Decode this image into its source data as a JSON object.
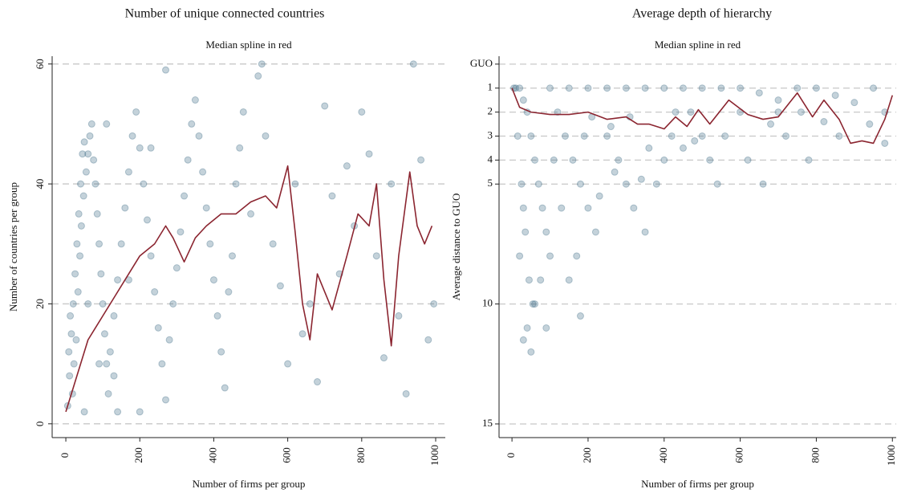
{
  "chart_data": [
    {
      "type": "scatter",
      "title": "Number of unique connected countries",
      "subtitle": "Median spline in red",
      "xlabel": "Number of firms per group",
      "ylabel": "Number of countries per group",
      "xlim": [
        -37,
        1026
      ],
      "ylim": [
        -2.3,
        61.3
      ],
      "xticks": [
        0,
        200,
        400,
        600,
        800,
        1000
      ],
      "yticks": [
        0,
        20,
        40,
        60
      ],
      "y_inverted": false,
      "ytick_rotated": true,
      "grid": true,
      "series": [
        {
          "mode": "markers",
          "color": "#3d6a85",
          "x": [
            5,
            10,
            15,
            20,
            25,
            30,
            35,
            40,
            45,
            50,
            8,
            12,
            18,
            22,
            28,
            33,
            38,
            42,
            48,
            55,
            60,
            65,
            70,
            75,
            80,
            85,
            90,
            95,
            100,
            105,
            110,
            115,
            120,
            130,
            140,
            150,
            160,
            170,
            180,
            190,
            200,
            210,
            220,
            230,
            240,
            250,
            260,
            270,
            280,
            290,
            300,
            310,
            320,
            330,
            340,
            350,
            360,
            370,
            380,
            390,
            400,
            410,
            420,
            430,
            440,
            450,
            460,
            470,
            480,
            500,
            520,
            530,
            540,
            560,
            580,
            600,
            620,
            640,
            660,
            680,
            700,
            720,
            740,
            760,
            780,
            800,
            820,
            840,
            860,
            880,
            900,
            920,
            940,
            960,
            980,
            995,
            60,
            90,
            140,
            200,
            50,
            130,
            170,
            230,
            270,
            110
          ],
          "y": [
            3,
            8,
            15,
            20,
            25,
            30,
            35,
            40,
            45,
            47,
            12,
            18,
            5,
            10,
            14,
            22,
            28,
            33,
            38,
            42,
            45,
            48,
            50,
            44,
            40,
            35,
            30,
            25,
            20,
            15,
            10,
            5,
            12,
            18,
            24,
            30,
            36,
            42,
            48,
            52,
            46,
            40,
            34,
            28,
            22,
            16,
            10,
            4,
            14,
            20,
            26,
            32,
            38,
            44,
            50,
            54,
            48,
            42,
            36,
            30,
            24,
            18,
            12,
            6,
            22,
            28,
            40,
            46,
            52,
            35,
            58,
            60,
            48,
            30,
            23,
            10,
            40,
            15,
            20,
            7,
            53,
            38,
            25,
            43,
            33,
            52,
            45,
            28,
            11,
            40,
            18,
            5,
            60,
            44,
            14,
            20,
            20,
            10,
            2,
            2,
            2,
            8,
            24,
            46,
            59,
            50
          ]
        },
        {
          "mode": "line",
          "color": "#8b2530",
          "x": [
            0,
            20,
            40,
            60,
            80,
            100,
            130,
            160,
            200,
            240,
            270,
            290,
            320,
            350,
            380,
            420,
            460,
            500,
            540,
            570,
            600,
            620,
            640,
            660,
            680,
            700,
            720,
            760,
            790,
            820,
            840,
            860,
            880,
            900,
            930,
            950,
            970,
            990
          ],
          "y": [
            2,
            6,
            10,
            14,
            16,
            18,
            21,
            24,
            28,
            30,
            33,
            31,
            27,
            31,
            33,
            35,
            35,
            37,
            38,
            36,
            43,
            32,
            20,
            14,
            25,
            22,
            19,
            28,
            35,
            33,
            40,
            24,
            13,
            28,
            42,
            33,
            30,
            33
          ]
        }
      ]
    },
    {
      "type": "scatter",
      "title": "Average depth of hierarchy",
      "subtitle": "Median spline in red",
      "xlabel": "Number of firms per group",
      "ylabel": "Average distance to GUO",
      "xlim": [
        -34,
        1010
      ],
      "ylim": [
        -0.33,
        15.57
      ],
      "xticks": [
        0,
        200,
        400,
        600,
        800,
        1000
      ],
      "yticks": [
        {
          "value": 0,
          "label": "GUO"
        },
        1,
        2,
        3,
        4,
        5,
        10,
        15
      ],
      "y_inverted": true,
      "ytick_rotated": false,
      "grid": true,
      "series": [
        {
          "mode": "markers",
          "color": "#3d6a85",
          "x": [
            5,
            10,
            20,
            30,
            40,
            50,
            60,
            70,
            80,
            90,
            100,
            15,
            25,
            35,
            45,
            55,
            20,
            30,
            40,
            50,
            100,
            150,
            200,
            250,
            300,
            350,
            400,
            450,
            500,
            550,
            600,
            650,
            700,
            750,
            800,
            850,
            900,
            950,
            980,
            120,
            140,
            160,
            180,
            200,
            220,
            150,
            180,
            110,
            130,
            170,
            250,
            280,
            300,
            320,
            350,
            380,
            400,
            420,
            450,
            470,
            500,
            520,
            540,
            560,
            600,
            620,
            660,
            680,
            700,
            720,
            760,
            780,
            820,
            860,
            940,
            980,
            60,
            75,
            90,
            30,
            270,
            340,
            230,
            190,
            210,
            260,
            310,
            360,
            430,
            480
          ],
          "y": [
            1,
            1,
            1,
            1.5,
            2,
            3,
            4,
            5,
            6,
            7,
            8,
            3,
            5,
            7,
            9,
            10,
            8,
            6,
            11,
            12,
            1,
            1,
            1,
            1,
            1,
            1,
            1,
            1,
            1,
            1,
            1,
            1.2,
            1.5,
            1,
            1,
            1.3,
            1.6,
            1,
            2,
            2,
            3,
            4,
            5,
            6,
            7,
            9,
            10.5,
            4,
            6,
            8,
            3,
            4,
            5,
            6,
            7,
            5,
            4,
            3,
            3.5,
            2,
            3,
            4,
            5,
            3,
            2,
            4,
            5,
            2.5,
            2,
            3,
            2,
            4,
            2.4,
            3,
            2.5,
            3.3,
            10,
            9,
            11,
            11.5,
            4.5,
            4.8,
            5.5,
            3,
            2.2,
            2.6,
            2.2,
            3.5,
            2,
            3.2
          ]
        },
        {
          "mode": "line",
          "color": "#8b2530",
          "x": [
            0,
            20,
            50,
            100,
            150,
            200,
            250,
            300,
            330,
            360,
            400,
            430,
            460,
            490,
            520,
            570,
            620,
            660,
            700,
            750,
            790,
            820,
            860,
            890,
            920,
            950,
            980,
            1000
          ],
          "y": [
            1.0,
            1.8,
            2.0,
            2.1,
            2.1,
            2.0,
            2.3,
            2.2,
            2.5,
            2.5,
            2.7,
            2.2,
            2.6,
            1.9,
            2.5,
            1.5,
            2.1,
            2.3,
            2.2,
            1.2,
            2.2,
            1.5,
            2.3,
            3.3,
            3.2,
            3.3,
            2.3,
            1.3
          ]
        }
      ]
    }
  ]
}
